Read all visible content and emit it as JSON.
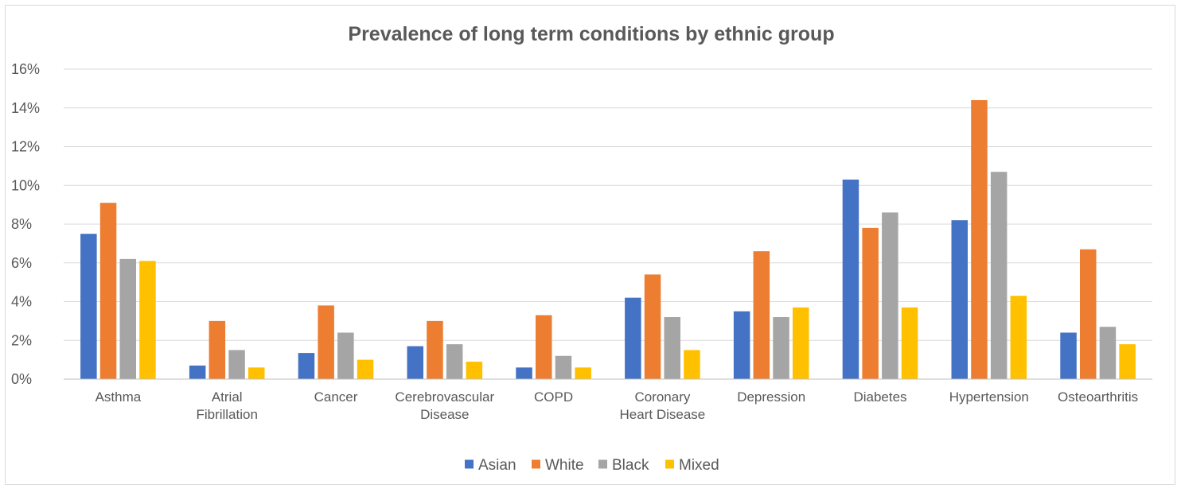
{
  "chart_data": {
    "type": "bar",
    "title": "Prevalence of long term conditions by ethnic group",
    "xlabel": "",
    "ylabel": "",
    "ylim": [
      0,
      0.16
    ],
    "y_ticks": [
      "0%",
      "2%",
      "4%",
      "6%",
      "8%",
      "10%",
      "12%",
      "14%",
      "16%"
    ],
    "y_tick_values": [
      0,
      0.02,
      0.04,
      0.06,
      0.08,
      0.1,
      0.12,
      0.14,
      0.16
    ],
    "grid": true,
    "legend_position": "bottom",
    "categories": [
      [
        "Asthma"
      ],
      [
        "Atrial",
        "Fibrillation"
      ],
      [
        "Cancer"
      ],
      [
        "Cerebrovascular",
        "Disease"
      ],
      [
        "COPD"
      ],
      [
        "Coronary",
        "Heart Disease"
      ],
      [
        "Depression"
      ],
      [
        "Diabetes"
      ],
      [
        "Hypertension"
      ],
      [
        "Osteoarthritis"
      ]
    ],
    "series": [
      {
        "name": "Asian",
        "color": "#4472c4",
        "values": [
          0.075,
          0.007,
          0.0135,
          0.017,
          0.006,
          0.042,
          0.035,
          0.103,
          0.082,
          0.024
        ]
      },
      {
        "name": "White",
        "color": "#ed7d31",
        "values": [
          0.091,
          0.03,
          0.038,
          0.03,
          0.033,
          0.054,
          0.066,
          0.078,
          0.144,
          0.067
        ]
      },
      {
        "name": "Black",
        "color": "#a5a5a5",
        "values": [
          0.062,
          0.015,
          0.024,
          0.018,
          0.012,
          0.032,
          0.032,
          0.086,
          0.107,
          0.027
        ]
      },
      {
        "name": "Mixed",
        "color": "#ffc000",
        "values": [
          0.061,
          0.006,
          0.01,
          0.009,
          0.006,
          0.015,
          0.037,
          0.037,
          0.043,
          0.018
        ]
      }
    ]
  },
  "styles": {
    "gridline_color": "#d9d9d9",
    "axis_color": "#bfbfbf",
    "text_color": "#595959"
  }
}
